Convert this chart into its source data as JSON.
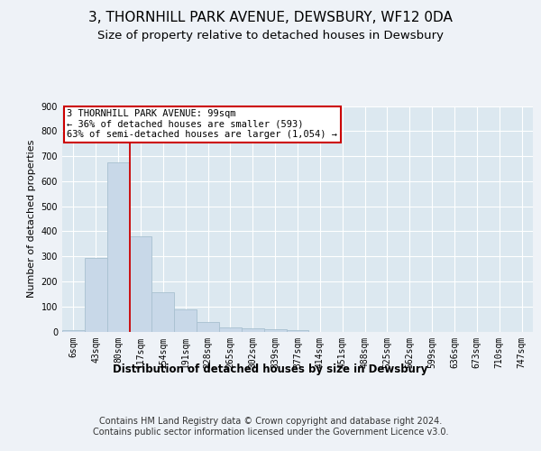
{
  "title_line1": "3, THORNHILL PARK AVENUE, DEWSBURY, WF12 0DA",
  "title_line2": "Size of property relative to detached houses in Dewsbury",
  "xlabel": "Distribution of detached houses by size in Dewsbury",
  "ylabel": "Number of detached properties",
  "footnote": "Contains HM Land Registry data © Crown copyright and database right 2024.\nContains public sector information licensed under the Government Licence v3.0.",
  "bin_labels": [
    "6sqm",
    "43sqm",
    "80sqm",
    "117sqm",
    "154sqm",
    "191sqm",
    "228sqm",
    "265sqm",
    "302sqm",
    "339sqm",
    "377sqm",
    "414sqm",
    "451sqm",
    "488sqm",
    "525sqm",
    "562sqm",
    "599sqm",
    "636sqm",
    "673sqm",
    "710sqm",
    "747sqm"
  ],
  "bar_values": [
    7,
    295,
    675,
    380,
    155,
    90,
    37,
    15,
    12,
    10,
    7,
    0,
    0,
    0,
    0,
    0,
    0,
    0,
    0,
    0,
    0
  ],
  "bar_color": "#c8d8e8",
  "bar_edgecolor": "#a8c0d0",
  "vline_x": 2.5,
  "vline_color": "#cc0000",
  "annotation_text": "3 THORNHILL PARK AVENUE: 99sqm\n← 36% of detached houses are smaller (593)\n63% of semi-detached houses are larger (1,054) →",
  "annotation_box_color": "#ffffff",
  "annotation_box_edgecolor": "#cc0000",
  "ylim": [
    0,
    900
  ],
  "yticks": [
    0,
    100,
    200,
    300,
    400,
    500,
    600,
    700,
    800,
    900
  ],
  "bg_color": "#eef2f7",
  "plot_bg_color": "#dce8f0",
  "title1_fontsize": 11,
  "title2_fontsize": 9.5,
  "xlabel_fontsize": 8.5,
  "ylabel_fontsize": 8,
  "footnote_fontsize": 7,
  "annotation_fontsize": 7.5,
  "tick_fontsize": 7
}
